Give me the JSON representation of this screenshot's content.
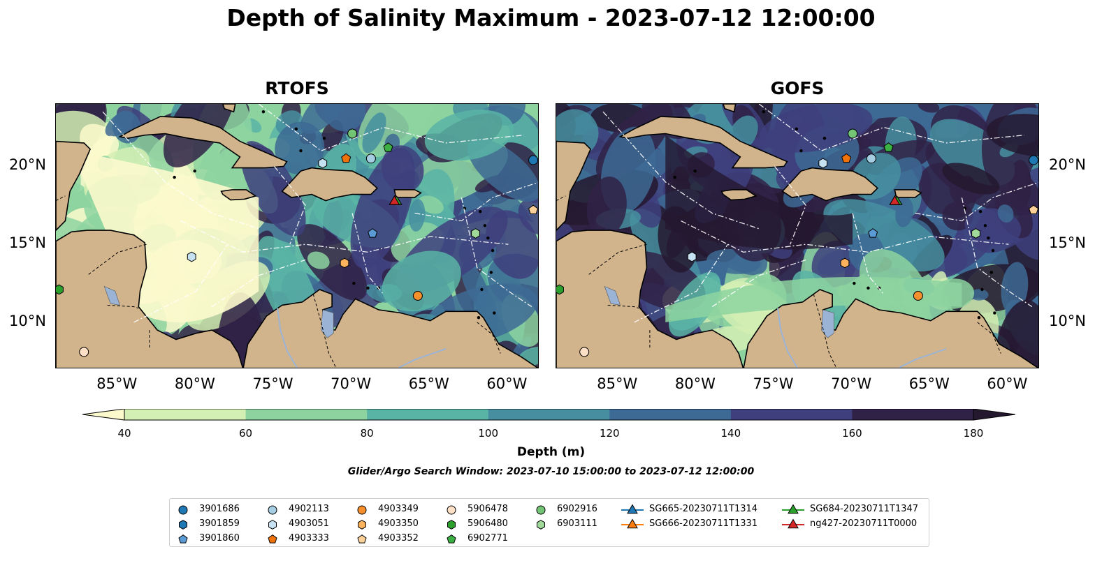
{
  "title": "Depth of Salinity Maximum - 2023-07-12 12:00:00",
  "panels": [
    {
      "title": "RTOFS",
      "scheme": "light"
    },
    {
      "title": "GOFS",
      "scheme": "dark"
    }
  ],
  "map_extent": {
    "lon": [
      -89,
      -58
    ],
    "lat": [
      7,
      24
    ]
  },
  "lon_ticks": [
    {
      "lon": -85,
      "label": "85°W"
    },
    {
      "lon": -80,
      "label": "80°W"
    },
    {
      "lon": -75,
      "label": "75°W"
    },
    {
      "lon": -70,
      "label": "70°W"
    },
    {
      "lon": -65,
      "label": "65°W"
    },
    {
      "lon": -60,
      "label": "60°W"
    }
  ],
  "lat_ticks": [
    {
      "lat": 20,
      "label": "20°N"
    },
    {
      "lat": 15,
      "label": "15°N"
    },
    {
      "lat": 10,
      "label": "10°N"
    }
  ],
  "colorbar": {
    "label": "Depth (m)",
    "boundaries": [
      40,
      60,
      80,
      100,
      120,
      140,
      160,
      180
    ],
    "tick_labels": [
      "40",
      "60",
      "80",
      "100",
      "120",
      "140",
      "160",
      "180"
    ],
    "colors": [
      "#d4efb4",
      "#8dd3a0",
      "#59b4a6",
      "#478fa0",
      "#3d6a94",
      "#3e3f7c",
      "#302246"
    ],
    "under_color": "#fcfacd",
    "over_color": "#24182f",
    "extend": "both"
  },
  "search_window": "Glider/Argo Search Window: 2023-07-10 15:00:00 to 2023-07-12 12:00:00",
  "colors": {
    "land": "#d2b48c",
    "water": "#9bb4d6"
  },
  "chart_data": {
    "type": "scatter",
    "series": [
      {
        "name": "3901686",
        "marker": "circle",
        "color": "#1f78b4",
        "points": [
          {
            "lon": -58.4,
            "lat": 20.4
          }
        ]
      },
      {
        "name": "3901859",
        "marker": "hexagon",
        "color": "#1f78b4",
        "points": []
      },
      {
        "name": "3901860",
        "marker": "pentagon",
        "color": "#5b9bd5",
        "points": [
          {
            "lon": -68.7,
            "lat": 15.7
          }
        ]
      },
      {
        "name": "4902113",
        "marker": "circle",
        "color": "#a6cee3",
        "points": [
          {
            "lon": -68.8,
            "lat": 20.5
          }
        ]
      },
      {
        "name": "4903051",
        "marker": "hexagon",
        "color": "#c6e2f2",
        "points": [
          {
            "lon": -71.9,
            "lat": 20.2
          },
          {
            "lon": -80.3,
            "lat": 14.2
          }
        ]
      },
      {
        "name": "4903333",
        "marker": "pentagon",
        "color": "#f0720a",
        "points": [
          {
            "lon": -70.4,
            "lat": 20.5
          }
        ]
      },
      {
        "name": "4903349",
        "marker": "circle",
        "color": "#f5902d",
        "points": [
          {
            "lon": -65.8,
            "lat": 11.7
          }
        ]
      },
      {
        "name": "4903350",
        "marker": "hexagon",
        "color": "#fdb35e",
        "points": [
          {
            "lon": -70.5,
            "lat": 13.8
          }
        ]
      },
      {
        "name": "4903352",
        "marker": "pentagon",
        "color": "#fdd098",
        "points": [
          {
            "lon": -58.4,
            "lat": 17.2
          }
        ]
      },
      {
        "name": "5906478",
        "marker": "circle",
        "color": "#fde0c5",
        "points": [
          {
            "lon": -87.2,
            "lat": 8.1
          }
        ]
      },
      {
        "name": "5906480",
        "marker": "hexagon",
        "color": "#2ca02c",
        "points": [
          {
            "lon": -88.8,
            "lat": 12.1
          }
        ]
      },
      {
        "name": "6902771",
        "marker": "pentagon",
        "color": "#3cb043",
        "points": [
          {
            "lon": -67.7,
            "lat": 21.2
          }
        ]
      },
      {
        "name": "6902916",
        "marker": "circle",
        "color": "#74c476",
        "points": [
          {
            "lon": -70.0,
            "lat": 22.1
          }
        ]
      },
      {
        "name": "6903111",
        "marker": "hexagon",
        "color": "#a1d99b",
        "points": [
          {
            "lon": -62.1,
            "lat": 15.7
          }
        ]
      },
      {
        "name": "SG665-20230711T1314",
        "marker": "triangle",
        "color": "#1f77b4",
        "points": [
          {
            "lon": -67.3,
            "lat": 17.8
          }
        ]
      },
      {
        "name": "SG666-20230711T1331",
        "marker": "triangle",
        "color": "#ff7f0e",
        "points": [
          {
            "lon": -67.25,
            "lat": 17.85
          }
        ]
      },
      {
        "name": "SG684-20230711T1347",
        "marker": "triangle",
        "color": "#2ca02c",
        "points": [
          {
            "lon": -67.15,
            "lat": 17.8
          }
        ]
      },
      {
        "name": "ng427-20230711T0000",
        "marker": "triangle",
        "color": "#d62728",
        "points": [
          {
            "lon": -67.3,
            "lat": 17.8
          }
        ]
      }
    ],
    "legend": {
      "location": "lower-center",
      "columns": 7
    }
  }
}
